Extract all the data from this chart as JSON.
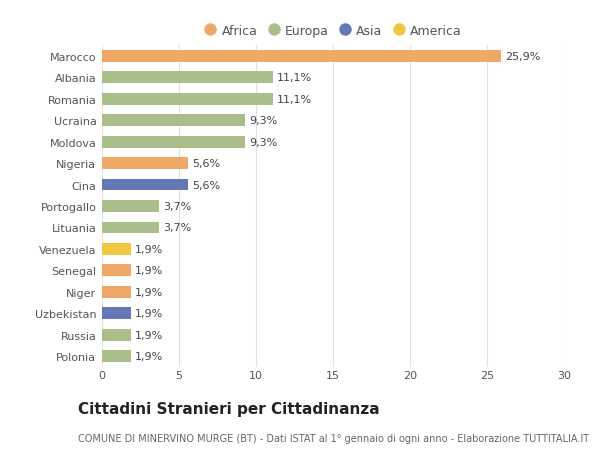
{
  "countries": [
    "Polonia",
    "Russia",
    "Uzbekistan",
    "Niger",
    "Senegal",
    "Venezuela",
    "Lituania",
    "Portogallo",
    "Cina",
    "Nigeria",
    "Moldova",
    "Ucraina",
    "Romania",
    "Albania",
    "Marocco"
  ],
  "values": [
    1.9,
    1.9,
    1.9,
    1.9,
    1.9,
    1.9,
    3.7,
    3.7,
    5.6,
    5.6,
    9.3,
    9.3,
    11.1,
    11.1,
    25.9
  ],
  "labels": [
    "1,9%",
    "1,9%",
    "1,9%",
    "1,9%",
    "1,9%",
    "1,9%",
    "3,7%",
    "3,7%",
    "5,6%",
    "5,6%",
    "9,3%",
    "9,3%",
    "11,1%",
    "11,1%",
    "25,9%"
  ],
  "continents": [
    "Europa",
    "Europa",
    "Asia",
    "Africa",
    "Africa",
    "America",
    "Europa",
    "Europa",
    "Asia",
    "Africa",
    "Europa",
    "Europa",
    "Europa",
    "Europa",
    "Africa"
  ],
  "colors": {
    "Africa": "#F0A868",
    "Europa": "#AABE8C",
    "Asia": "#6478B8",
    "America": "#F0C840"
  },
  "legend_order": [
    "Africa",
    "Europa",
    "Asia",
    "America"
  ],
  "xlim": [
    0,
    30
  ],
  "xticks": [
    0,
    5,
    10,
    15,
    20,
    25,
    30
  ],
  "title": "Cittadini Stranieri per Cittadinanza",
  "subtitle": "COMUNE DI MINERVINO MURGE (BT) - Dati ISTAT al 1° gennaio di ogni anno - Elaborazione TUTTITALIA.IT",
  "background_color": "#ffffff",
  "bar_height": 0.55,
  "grid_color": "#e0e0e0",
  "title_fontsize": 11,
  "subtitle_fontsize": 7,
  "label_fontsize": 8,
  "tick_fontsize": 8,
  "legend_fontsize": 9
}
